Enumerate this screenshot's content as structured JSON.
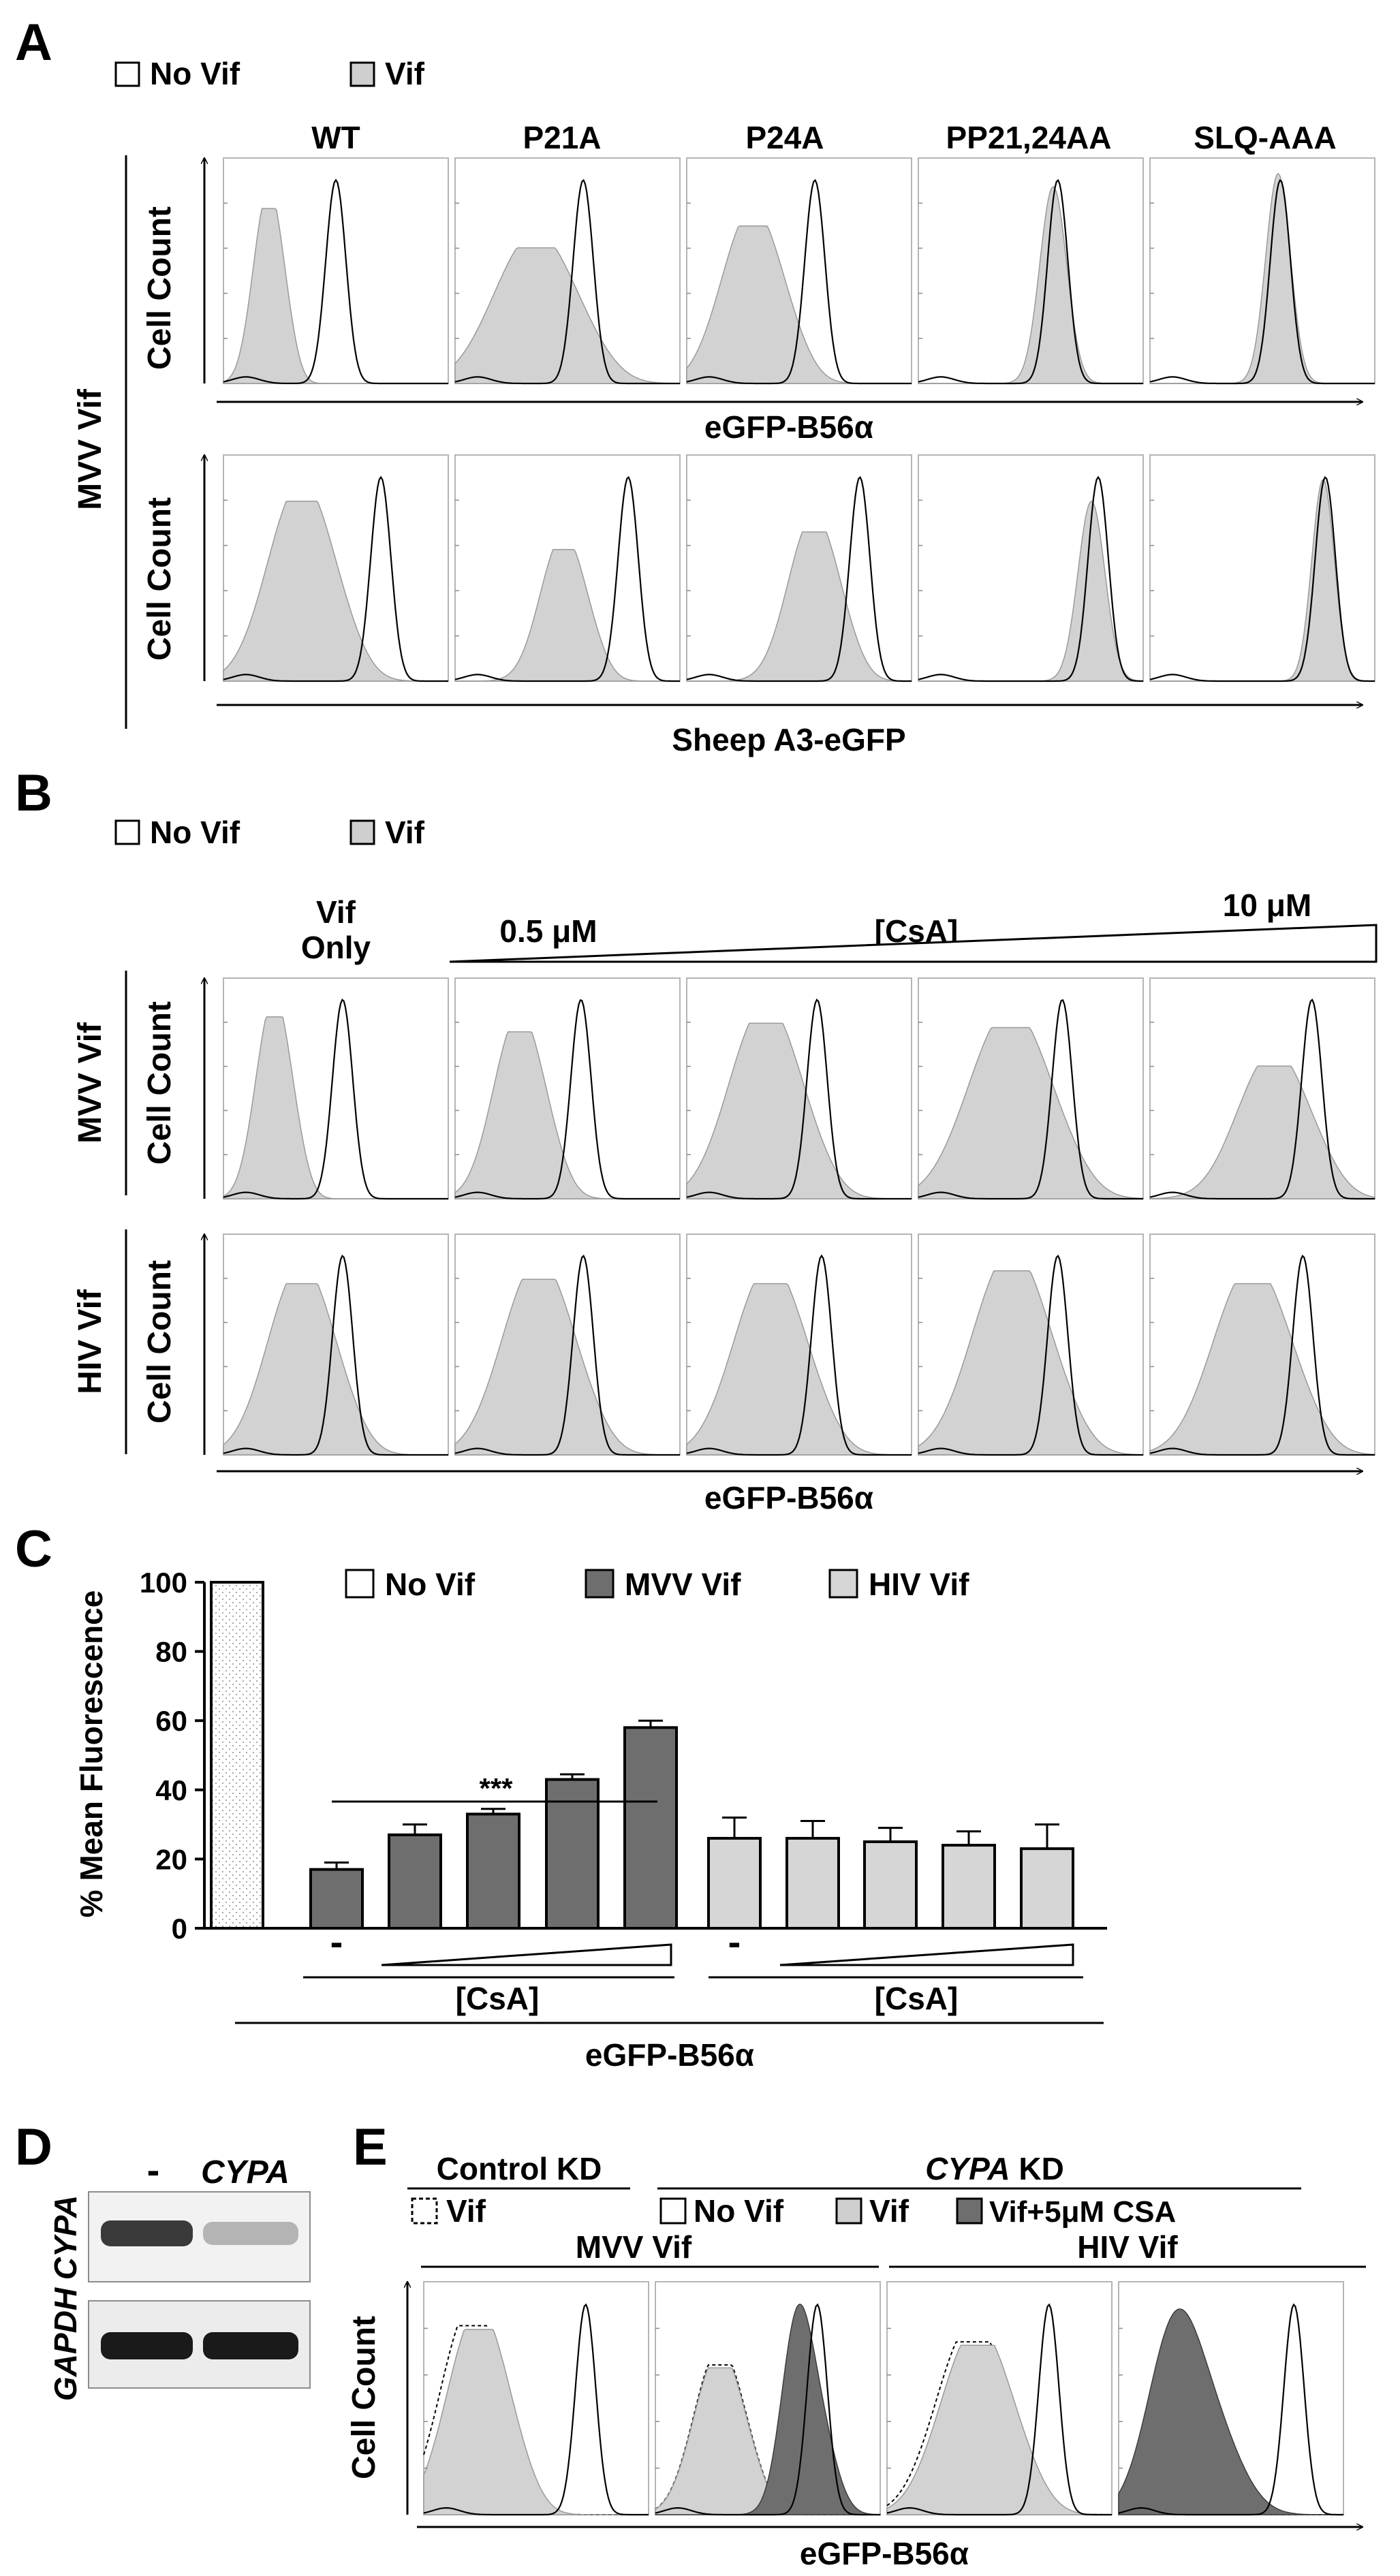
{
  "panels": {
    "a": {
      "letter": "A",
      "legend": {
        "no_vif": "No Vif",
        "vif": "Vif"
      },
      "columns": [
        "WT",
        "P21A",
        "P24A",
        "PP21,24AA",
        "SLQ-AAA"
      ],
      "row_group": "MVV Vif",
      "y_label": "Cell Count",
      "x_label_top": "eGFP-B56α",
      "x_label_bottom": "Sheep A3-eGFP",
      "histograms": {
        "top": [
          {
            "vif_peak": 0.18,
            "vif_spread": 0.06,
            "vif_height": 0.8,
            "vif_shape": "left",
            "ctrl_peak": 0.5
          },
          {
            "vif_peak": 0.3,
            "vif_spread": 0.16,
            "vif_height": 0.62,
            "vif_shape": "left",
            "ctrl_peak": 0.57
          },
          {
            "vif_peak": 0.25,
            "vif_spread": 0.12,
            "vif_height": 0.72,
            "vif_shape": "left",
            "ctrl_peak": 0.57
          },
          {
            "vif_peak": 0.6,
            "vif_spread": 0.06,
            "vif_height": 0.9,
            "vif_shape": "match",
            "ctrl_peak": 0.62
          },
          {
            "vif_peak": 0.57,
            "vif_spread": 0.055,
            "vif_height": 0.96,
            "vif_shape": "match",
            "ctrl_peak": 0.58
          }
        ],
        "bottom": [
          {
            "vif_peak": 0.3,
            "vif_spread": 0.13,
            "vif_height": 0.82,
            "vif_shape": "left",
            "ctrl_peak": 0.7
          },
          {
            "vif_peak": 0.45,
            "vif_spread": 0.09,
            "vif_height": 0.6,
            "vif_shape": "left",
            "ctrl_peak": 0.77
          },
          {
            "vif_peak": 0.53,
            "vif_spread": 0.1,
            "vif_height": 0.68,
            "vif_shape": "left",
            "ctrl_peak": 0.77
          },
          {
            "vif_peak": 0.77,
            "vif_spread": 0.06,
            "vif_height": 0.82,
            "vif_shape": "match",
            "ctrl_peak": 0.8
          },
          {
            "vif_peak": 0.77,
            "vif_spread": 0.05,
            "vif_height": 0.92,
            "vif_shape": "match",
            "ctrl_peak": 0.78
          }
        ]
      }
    },
    "b": {
      "letter": "B",
      "legend": {
        "no_vif": "No Vif",
        "vif": "Vif"
      },
      "vif_only_label": "Vif Only",
      "conc_low": "0.5 μM",
      "conc_label": "[CsA]",
      "conc_high": "10 μM",
      "row_labels": [
        "MVV Vif",
        "HIV Vif"
      ],
      "y_label": "Cell Count",
      "x_label": "eGFP-B56α",
      "histograms": {
        "mvv": [
          {
            "vif_peak": 0.2,
            "vif_spread": 0.07,
            "vif_height": 0.85,
            "vif_shape": "left",
            "ctrl_peak": 0.53
          },
          {
            "vif_peak": 0.25,
            "vif_spread": 0.1,
            "vif_height": 0.78,
            "vif_shape": "left",
            "ctrl_peak": 0.56
          },
          {
            "vif_peak": 0.3,
            "vif_spread": 0.14,
            "vif_height": 0.82,
            "vif_shape": "left",
            "ctrl_peak": 0.58
          },
          {
            "vif_peak": 0.35,
            "vif_spread": 0.16,
            "vif_height": 0.8,
            "vif_shape": "left",
            "ctrl_peak": 0.64
          },
          {
            "vif_peak": 0.5,
            "vif_spread": 0.14,
            "vif_height": 0.62,
            "vif_shape": "left",
            "ctrl_peak": 0.72
          }
        ],
        "hiv": [
          {
            "vif_peak": 0.3,
            "vif_spread": 0.13,
            "vif_height": 0.8,
            "vif_shape": "left",
            "ctrl_peak": 0.53
          },
          {
            "vif_peak": 0.32,
            "vif_spread": 0.14,
            "vif_height": 0.82,
            "vif_shape": "left",
            "ctrl_peak": 0.57
          },
          {
            "vif_peak": 0.32,
            "vif_spread": 0.14,
            "vif_height": 0.8,
            "vif_shape": "left",
            "ctrl_peak": 0.6
          },
          {
            "vif_peak": 0.36,
            "vif_spread": 0.15,
            "vif_height": 0.86,
            "vif_shape": "left",
            "ctrl_peak": 0.62
          },
          {
            "vif_peak": 0.4,
            "vif_spread": 0.15,
            "vif_height": 0.8,
            "vif_shape": "left",
            "ctrl_peak": 0.68
          }
        ]
      }
    },
    "c": {
      "letter": "C",
      "legend": [
        "No Vif",
        "MVV Vif",
        "HIV Vif"
      ],
      "significance": "***",
      "minus_label": "-",
      "csa_label": "[CsA]",
      "x_label": "eGFP-B56α"
    },
    "d": {
      "letter": "D",
      "lanes": [
        "-",
        "CYPA"
      ],
      "rows": [
        "CYPA",
        "GAPDH"
      ],
      "intensities": {
        "cypa": [
          0.9,
          0.3
        ],
        "gapdh": [
          1.0,
          1.0
        ]
      }
    },
    "e": {
      "letter": "E",
      "control_header": "Control KD",
      "cypa_header_gene": "CYPA",
      "cypa_header_suffix": "KD",
      "legend": {
        "vif_dotted": "Vif",
        "no_vif": "No Vif",
        "vif": "Vif",
        "vif_csa": "Vif+5μM CSA"
      },
      "groups": [
        "MVV Vif",
        "HIV Vif"
      ],
      "y_label": "Cell Count",
      "x_label": "eGFP-B56α",
      "histograms": [
        {
          "ctrl_peak": 0.72,
          "dotted_peak": 0.17,
          "vif_peak": 0.2,
          "vif_spread": 0.12,
          "vif_height": 0.82,
          "csa": false
        },
        {
          "ctrl_peak": 0.72,
          "dotted_peak": 0.25,
          "vif_peak": 0.25,
          "vif_spread": 0.1,
          "vif_height": 0.65,
          "csa": true,
          "csa_peak": 0.63,
          "csa_spread": 0.07,
          "csa_height": 0.88
        },
        {
          "ctrl_peak": 0.72,
          "dotted_peak": 0.33,
          "vif_peak": 0.35,
          "vif_spread": 0.14,
          "vif_height": 0.75,
          "csa": false
        },
        {
          "ctrl_peak": 0.78,
          "dotted_peak": 0.25,
          "vif_peak": 0.25,
          "vif_spread": 0.1,
          "vif_height": 0.15,
          "csa": true,
          "csa_peak": 0.25,
          "csa_spread": 0.12,
          "csa_height": 0.86
        }
      ]
    }
  },
  "chart_data": {
    "type": "bar",
    "title": "",
    "ylabel": "% Mean Fluorescence",
    "xlabel": "eGFP-B56α",
    "ylim": [
      0,
      100
    ],
    "yticks": [
      0,
      20,
      40,
      60,
      80,
      100
    ],
    "categories": [
      "No Vif",
      "MVV Vif -",
      "MVV Vif CsA 1",
      "MVV Vif CsA 2",
      "MVV Vif CsA 3",
      "MVV Vif CsA 4",
      "HIV Vif -",
      "HIV Vif CsA 1",
      "HIV Vif CsA 2",
      "HIV Vif CsA 3",
      "HIV Vif CsA 4"
    ],
    "series": [
      {
        "name": "No Vif",
        "values": [
          100,
          null,
          null,
          null,
          null,
          null,
          null,
          null,
          null,
          null,
          null
        ],
        "errors": [
          0,
          0,
          0,
          0,
          0,
          0,
          0,
          0,
          0,
          0,
          0
        ]
      },
      {
        "name": "MVV Vif",
        "values": [
          null,
          17,
          27,
          33,
          43,
          58,
          null,
          null,
          null,
          null,
          null
        ],
        "errors": [
          0,
          2,
          3,
          1.5,
          1.5,
          2,
          0,
          0,
          0,
          0,
          0
        ]
      },
      {
        "name": "HIV Vif",
        "values": [
          null,
          null,
          null,
          null,
          null,
          null,
          26,
          26,
          25,
          24,
          23
        ],
        "errors": [
          0,
          0,
          0,
          0,
          0,
          0,
          6,
          5,
          4,
          4,
          7
        ]
      }
    ],
    "significance_label": "***",
    "colors": {
      "no_vif": "#ffffff",
      "mvv_vif": "#6e6e6e",
      "hiv_vif": "#d6d6d6"
    }
  }
}
